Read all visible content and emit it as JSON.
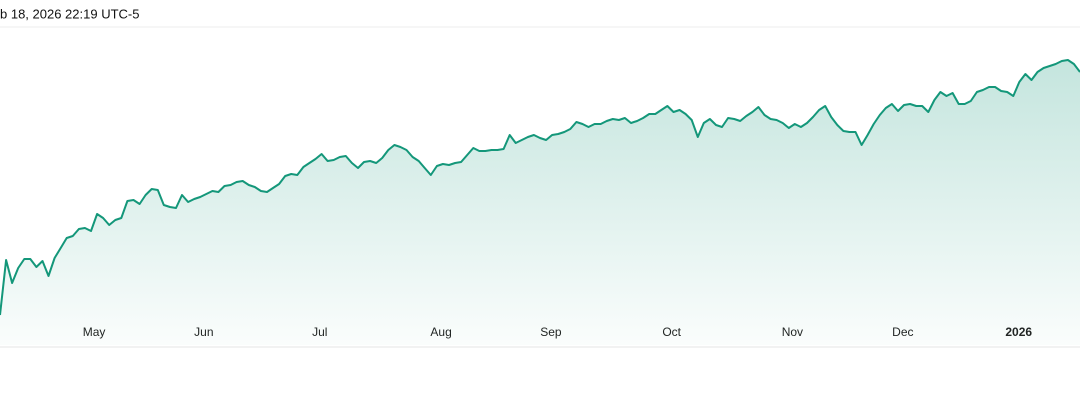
{
  "chart_data": {
    "type": "area",
    "title": "b 18, 2026 22:19 UTC-5",
    "color": "#14977a",
    "values": [
      30,
      85,
      62,
      77,
      86,
      86,
      78,
      84,
      69,
      87,
      97,
      107,
      109,
      116,
      117,
      114,
      131,
      127,
      120,
      125,
      127,
      144,
      145,
      141,
      150,
      156,
      155,
      140,
      138,
      137,
      150,
      143,
      146,
      148,
      151,
      154,
      153,
      159,
      160,
      163,
      164,
      160,
      158,
      154,
      153,
      157,
      161,
      169,
      171,
      170,
      178,
      182,
      186,
      191,
      184,
      185,
      188,
      189,
      182,
      177,
      183,
      184,
      182,
      187,
      195,
      200,
      198,
      195,
      188,
      184,
      177,
      170,
      179,
      181,
      180,
      182,
      183,
      190,
      197,
      194,
      194,
      195,
      195,
      196,
      210,
      202,
      205,
      208,
      210,
      207,
      205,
      210,
      211,
      213,
      216,
      223,
      221,
      218,
      221,
      221,
      224,
      226,
      225,
      227,
      222,
      224,
      227,
      231,
      231,
      235,
      239,
      233,
      235,
      231,
      225,
      208,
      222,
      226,
      220,
      218,
      227,
      226,
      224,
      229,
      233,
      238,
      230,
      226,
      225,
      222,
      217,
      221,
      218,
      222,
      228,
      235,
      239,
      228,
      220,
      214,
      213,
      213,
      200,
      210,
      221,
      230,
      237,
      241,
      234,
      240,
      241,
      239,
      239,
      233,
      245,
      253,
      249,
      252,
      241,
      241,
      244,
      253,
      255,
      258,
      258,
      254,
      253,
      249,
      263,
      271,
      265,
      273,
      277,
      279,
      281,
      284,
      285,
      281,
      273
    ],
    "xlim": [
      0,
      178
    ],
    "xticks": [
      {
        "value": 15.5,
        "label": "May"
      },
      {
        "value": 33.6,
        "label": "Jun"
      },
      {
        "value": 52.7,
        "label": "Jul"
      },
      {
        "value": 72.7,
        "label": "Aug"
      },
      {
        "value": 90.8,
        "label": "Sep"
      },
      {
        "value": 110.7,
        "label": "Oct"
      },
      {
        "value": 130.6,
        "label": "Nov"
      },
      {
        "value": 148.8,
        "label": "Dec"
      },
      {
        "value": 167.9,
        "label": "2026"
      }
    ],
    "ylim": [
      0,
      315
    ]
  }
}
